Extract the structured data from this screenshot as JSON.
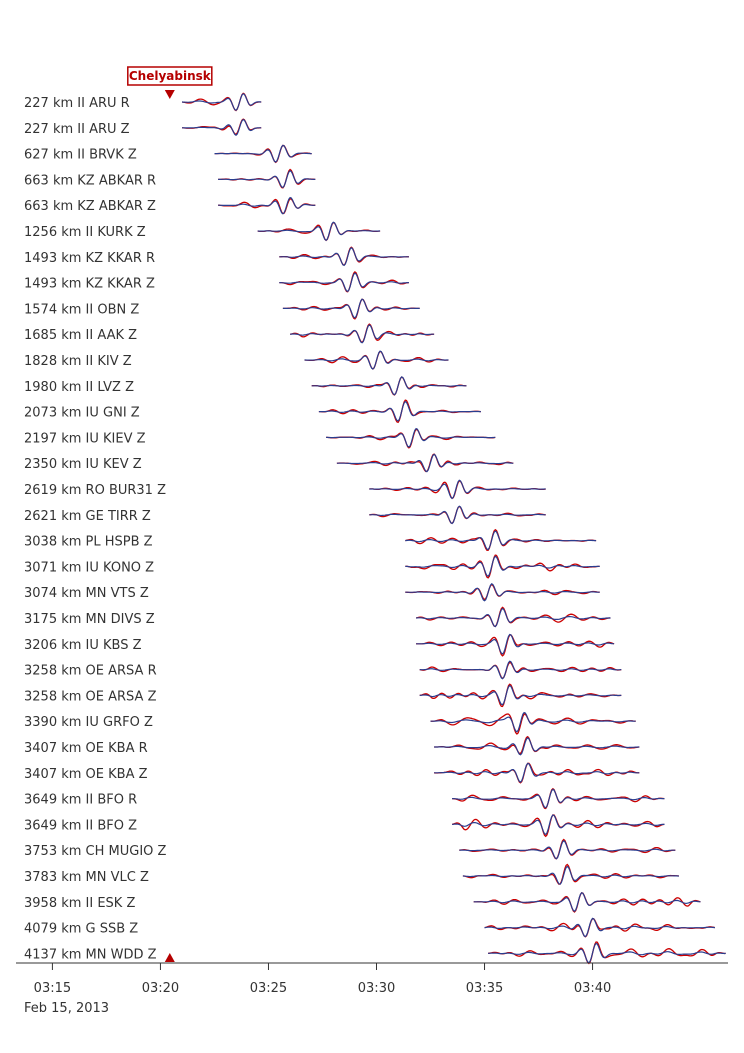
{
  "chart_data": {
    "type": "line",
    "title": "",
    "event": {
      "label": "Chelyabinsk",
      "origin_time": "03:20:26",
      "color": "#b50000"
    },
    "x_axis": {
      "range": [
        "03:13:30",
        "03:46:30"
      ],
      "ticks": [
        "03:15",
        "03:20",
        "03:25",
        "03:30",
        "03:35",
        "03:40"
      ],
      "date_label": "Feb 15, 2013"
    },
    "series_colors": {
      "primary": "#cc0000",
      "secondary": "#2a3d8f"
    },
    "stations": [
      {
        "label": "227 km II ARU R",
        "distance_km": 227,
        "window": [
          "03:21:00",
          "03:24:40"
        ],
        "peak": "03:23:40"
      },
      {
        "label": "227 km II ARU Z",
        "distance_km": 227,
        "window": [
          "03:21:00",
          "03:24:40"
        ],
        "peak": "03:23:40"
      },
      {
        "label": "627 km II BRVK Z",
        "distance_km": 627,
        "window": [
          "03:22:30",
          "03:27:00"
        ],
        "peak": "03:25:30"
      },
      {
        "label": "663 km KZ ABKAR R",
        "distance_km": 663,
        "window": [
          "03:22:40",
          "03:27:10"
        ],
        "peak": "03:25:50"
      },
      {
        "label": "663 km KZ ABKAR Z",
        "distance_km": 663,
        "window": [
          "03:22:40",
          "03:27:10"
        ],
        "peak": "03:25:50"
      },
      {
        "label": "1256 km II KURK Z",
        "distance_km": 1256,
        "window": [
          "03:24:30",
          "03:30:10"
        ],
        "peak": "03:27:50"
      },
      {
        "label": "1493 km KZ KKAR R",
        "distance_km": 1493,
        "window": [
          "03:25:30",
          "03:31:30"
        ],
        "peak": "03:28:40"
      },
      {
        "label": "1493 km KZ KKAR Z",
        "distance_km": 1493,
        "window": [
          "03:25:30",
          "03:31:30"
        ],
        "peak": "03:28:50"
      },
      {
        "label": "1574 km II OBN Z",
        "distance_km": 1574,
        "window": [
          "03:25:40",
          "03:32:00"
        ],
        "peak": "03:29:10"
      },
      {
        "label": "1685 km II AAK Z",
        "distance_km": 1685,
        "window": [
          "03:26:00",
          "03:32:40"
        ],
        "peak": "03:29:30"
      },
      {
        "label": "1828 km II KIV Z",
        "distance_km": 1828,
        "window": [
          "03:26:40",
          "03:33:20"
        ],
        "peak": "03:30:00"
      },
      {
        "label": "1980 km II LVZ Z",
        "distance_km": 1980,
        "window": [
          "03:27:00",
          "03:34:10"
        ],
        "peak": "03:31:00"
      },
      {
        "label": "2073 km IU GNI Z",
        "distance_km": 2073,
        "window": [
          "03:27:20",
          "03:34:50"
        ],
        "peak": "03:31:10"
      },
      {
        "label": "2197 km IU KIEV Z",
        "distance_km": 2197,
        "window": [
          "03:27:40",
          "03:35:30"
        ],
        "peak": "03:31:40"
      },
      {
        "label": "2350 km IU KEV Z",
        "distance_km": 2350,
        "window": [
          "03:28:10",
          "03:36:20"
        ],
        "peak": "03:32:30"
      },
      {
        "label": "2619 km RO BUR31 Z",
        "distance_km": 2619,
        "window": [
          "03:29:40",
          "03:37:50"
        ],
        "peak": "03:33:40"
      },
      {
        "label": "2621 km GE TIRR Z",
        "distance_km": 2621,
        "window": [
          "03:29:40",
          "03:37:50"
        ],
        "peak": "03:33:40"
      },
      {
        "label": "3038 km PL HSPB Z",
        "distance_km": 3038,
        "window": [
          "03:31:20",
          "03:40:10"
        ],
        "peak": "03:35:20"
      },
      {
        "label": "3071 km IU KONO Z",
        "distance_km": 3071,
        "window": [
          "03:31:20",
          "03:40:20"
        ],
        "peak": "03:35:20"
      },
      {
        "label": "3074 km MN VTS Z",
        "distance_km": 3074,
        "window": [
          "03:31:20",
          "03:40:20"
        ],
        "peak": "03:35:10"
      },
      {
        "label": "3175 km MN DIVS Z",
        "distance_km": 3175,
        "window": [
          "03:31:50",
          "03:40:50"
        ],
        "peak": "03:35:40"
      },
      {
        "label": "3206 km IU KBS Z",
        "distance_km": 3206,
        "window": [
          "03:31:50",
          "03:41:00"
        ],
        "peak": "03:36:00"
      },
      {
        "label": "3258 km OE ARSA R",
        "distance_km": 3258,
        "window": [
          "03:32:00",
          "03:41:20"
        ],
        "peak": "03:36:00"
      },
      {
        "label": "3258 km OE ARSA Z",
        "distance_km": 3258,
        "window": [
          "03:32:00",
          "03:41:20"
        ],
        "peak": "03:36:00"
      },
      {
        "label": "3390 km IU GRFO Z",
        "distance_km": 3390,
        "window": [
          "03:32:30",
          "03:42:00"
        ],
        "peak": "03:36:40"
      },
      {
        "label": "3407 km OE KBA R",
        "distance_km": 3407,
        "window": [
          "03:32:40",
          "03:42:10"
        ],
        "peak": "03:36:50"
      },
      {
        "label": "3407 km OE KBA Z",
        "distance_km": 3407,
        "window": [
          "03:32:40",
          "03:42:10"
        ],
        "peak": "03:36:50"
      },
      {
        "label": "3649 km II BFO R",
        "distance_km": 3649,
        "window": [
          "03:33:30",
          "03:43:20"
        ],
        "peak": "03:38:00"
      },
      {
        "label": "3649 km II BFO Z",
        "distance_km": 3649,
        "window": [
          "03:33:30",
          "03:43:20"
        ],
        "peak": "03:38:00"
      },
      {
        "label": "3753 km CH MUGIO Z",
        "distance_km": 3753,
        "window": [
          "03:33:50",
          "03:43:50"
        ],
        "peak": "03:38:30"
      },
      {
        "label": "3783 km MN VLC Z",
        "distance_km": 3783,
        "window": [
          "03:34:00",
          "03:44:00"
        ],
        "peak": "03:38:40"
      },
      {
        "label": "3958 km II ESK Z",
        "distance_km": 3958,
        "window": [
          "03:34:30",
          "03:45:00"
        ],
        "peak": "03:39:20"
      },
      {
        "label": "4079 km G SSB Z",
        "distance_km": 4079,
        "window": [
          "03:35:00",
          "03:45:40"
        ],
        "peak": "03:39:50"
      },
      {
        "label": "4137 km MN WDD Z",
        "distance_km": 4137,
        "window": [
          "03:35:10",
          "03:46:10"
        ],
        "peak": "03:40:00"
      }
    ]
  }
}
